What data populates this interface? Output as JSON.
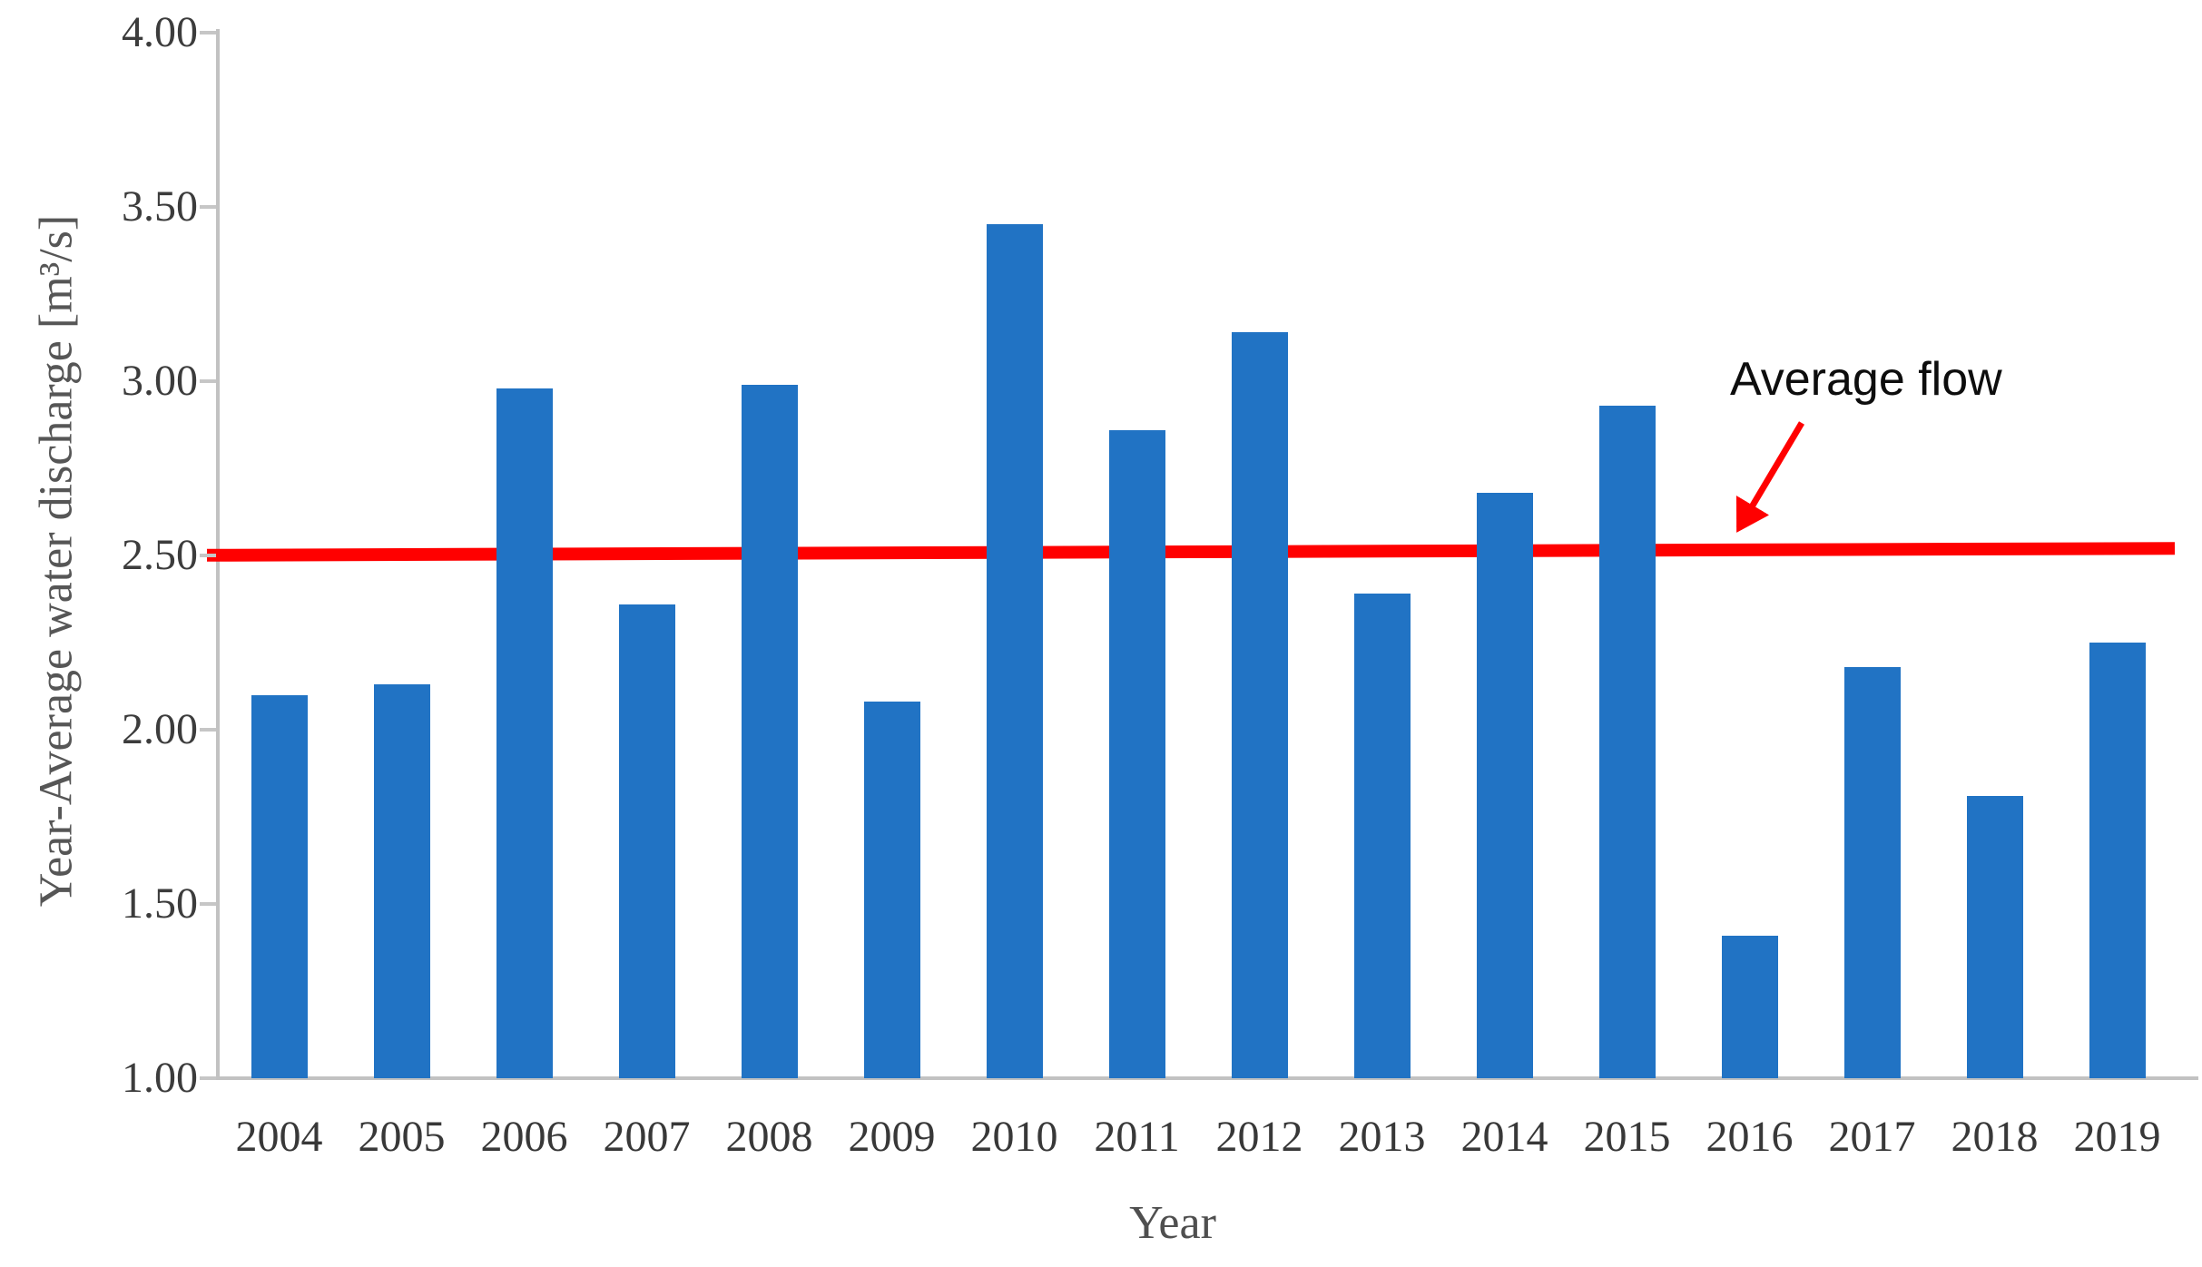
{
  "chart_data": {
    "type": "bar",
    "title": "",
    "xlabel": "Year",
    "ylabel": "Year-Average water discharge [m³/s]",
    "categories": [
      "2004",
      "2005",
      "2006",
      "2007",
      "2008",
      "2009",
      "2010",
      "2011",
      "2012",
      "2013",
      "2014",
      "2015",
      "2016",
      "2017",
      "2018",
      "2019"
    ],
    "values": [
      2.1,
      2.13,
      2.98,
      2.36,
      2.99,
      2.08,
      3.45,
      2.86,
      3.14,
      2.39,
      2.68,
      2.93,
      1.41,
      2.18,
      1.81,
      2.25
    ],
    "series_name": "Year-average water discharge",
    "ylim": [
      1.0,
      4.0
    ],
    "yticks": [
      4.0,
      3.5,
      3.0,
      2.5,
      2.0,
      1.5,
      1.0
    ],
    "ytick_labels": [
      "4.00",
      "3.50",
      "3.00",
      "2.50",
      "2.00",
      "1.50",
      "1.00"
    ],
    "grid": false,
    "legend": "none",
    "average_line": {
      "value": 2.51
    },
    "annotation": {
      "label": "Average flow",
      "arrow": true
    },
    "colors": {
      "bar": "#2173c4",
      "average_line": "#ff0000",
      "axis": "#c2c2c2",
      "tick_labels": "#3c3c3c",
      "axis_titles": "#565656",
      "annotation_text": "#0d0d0d",
      "background": "#ffffff"
    }
  }
}
